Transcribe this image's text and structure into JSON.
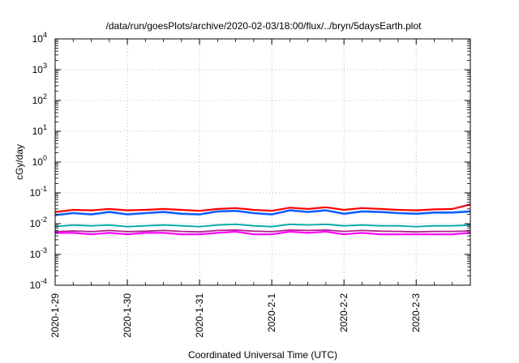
{
  "chart_data": {
    "type": "line",
    "title": "/data/run/goesPlots/archive/2020-02-03/18:00/flux/../bryn/5daysEarth.plot",
    "xlabel": "Coordinated Universal Time (UTC)",
    "ylabel": "cGy/day",
    "y_scale": "log",
    "ylim": [
      0.0001,
      10000
    ],
    "y_ticks": [
      {
        "value": 10000,
        "base": "10",
        "exp": "4"
      },
      {
        "value": 1000,
        "base": "10",
        "exp": "3"
      },
      {
        "value": 100,
        "base": "10",
        "exp": "2"
      },
      {
        "value": 10,
        "base": "10",
        "exp": "1"
      },
      {
        "value": 1,
        "base": "10",
        "exp": "0"
      },
      {
        "value": 0.1,
        "base": "10",
        "exp": "-1"
      },
      {
        "value": 0.01,
        "base": "10",
        "exp": "-2"
      },
      {
        "value": 0.001,
        "base": "10",
        "exp": "-3"
      },
      {
        "value": 0.0001,
        "base": "10",
        "exp": "-4"
      }
    ],
    "xlim": [
      "2020-01-29 00:00",
      "2020-02-03 18:00"
    ],
    "x_ticks": [
      {
        "value": "2020-01-29 00:00",
        "label": "2020-1-29"
      },
      {
        "value": "2020-01-30 00:00",
        "label": "2020-1-30"
      },
      {
        "value": "2020-01-31 00:00",
        "label": "2020-1-31"
      },
      {
        "value": "2020-02-01 00:00",
        "label": "2020-2-1"
      },
      {
        "value": "2020-02-02 00:00",
        "label": "2020-2-2"
      },
      {
        "value": "2020-02-03 00:00",
        "label": "2020-2-3"
      }
    ],
    "grid": true,
    "legend": "none",
    "series": [
      {
        "color": "#ff0000",
        "points": [
          [
            "2020-01-29 00:00",
            0.024
          ],
          [
            "2020-01-29 06:00",
            0.028
          ],
          [
            "2020-01-29 12:00",
            0.027
          ],
          [
            "2020-01-29 18:00",
            0.03
          ],
          [
            "2020-01-30 00:00",
            0.027
          ],
          [
            "2020-01-30 06:00",
            0.028
          ],
          [
            "2020-01-30 12:00",
            0.03
          ],
          [
            "2020-01-30 18:00",
            0.028
          ],
          [
            "2020-01-31 00:00",
            0.026
          ],
          [
            "2020-01-31 06:00",
            0.03
          ],
          [
            "2020-01-31 12:00",
            0.032
          ],
          [
            "2020-01-31 18:00",
            0.028
          ],
          [
            "2020-02-01 00:00",
            0.026
          ],
          [
            "2020-02-01 06:00",
            0.033
          ],
          [
            "2020-02-01 12:00",
            0.03
          ],
          [
            "2020-02-01 18:00",
            0.034
          ],
          [
            "2020-02-02 00:00",
            0.028
          ],
          [
            "2020-02-02 06:00",
            0.032
          ],
          [
            "2020-02-02 12:00",
            0.03
          ],
          [
            "2020-02-02 18:00",
            0.028
          ],
          [
            "2020-02-03 00:00",
            0.027
          ],
          [
            "2020-02-03 06:00",
            0.029
          ],
          [
            "2020-02-03 12:00",
            0.03
          ],
          [
            "2020-02-03 18:00",
            0.042
          ]
        ]
      },
      {
        "color": "#1060ff",
        "points": [
          [
            "2020-01-29 00:00",
            0.019
          ],
          [
            "2020-01-29 06:00",
            0.022
          ],
          [
            "2020-01-29 12:00",
            0.02
          ],
          [
            "2020-01-29 18:00",
            0.024
          ],
          [
            "2020-01-30 00:00",
            0.02
          ],
          [
            "2020-01-30 06:00",
            0.022
          ],
          [
            "2020-01-30 12:00",
            0.024
          ],
          [
            "2020-01-30 18:00",
            0.021
          ],
          [
            "2020-01-31 00:00",
            0.02
          ],
          [
            "2020-01-31 06:00",
            0.025
          ],
          [
            "2020-01-31 12:00",
            0.026
          ],
          [
            "2020-01-31 18:00",
            0.022
          ],
          [
            "2020-02-01 00:00",
            0.02
          ],
          [
            "2020-02-01 06:00",
            0.027
          ],
          [
            "2020-02-01 12:00",
            0.024
          ],
          [
            "2020-02-01 18:00",
            0.027
          ],
          [
            "2020-02-02 00:00",
            0.021
          ],
          [
            "2020-02-02 06:00",
            0.025
          ],
          [
            "2020-02-02 12:00",
            0.024
          ],
          [
            "2020-02-02 18:00",
            0.022
          ],
          [
            "2020-02-03 00:00",
            0.021
          ],
          [
            "2020-02-03 06:00",
            0.023
          ],
          [
            "2020-02-03 12:00",
            0.023
          ],
          [
            "2020-02-03 18:00",
            0.025
          ]
        ]
      },
      {
        "color": "#00a8a8",
        "points": [
          [
            "2020-01-29 00:00",
            0.008
          ],
          [
            "2020-01-29 06:00",
            0.009
          ],
          [
            "2020-01-29 12:00",
            0.0085
          ],
          [
            "2020-01-29 18:00",
            0.009
          ],
          [
            "2020-01-30 00:00",
            0.008
          ],
          [
            "2020-01-30 06:00",
            0.0085
          ],
          [
            "2020-01-30 12:00",
            0.009
          ],
          [
            "2020-01-30 18:00",
            0.0085
          ],
          [
            "2020-01-31 00:00",
            0.008
          ],
          [
            "2020-01-31 06:00",
            0.009
          ],
          [
            "2020-01-31 12:00",
            0.0095
          ],
          [
            "2020-01-31 18:00",
            0.0085
          ],
          [
            "2020-02-01 00:00",
            0.008
          ],
          [
            "2020-02-01 06:00",
            0.0095
          ],
          [
            "2020-02-01 12:00",
            0.009
          ],
          [
            "2020-02-01 18:00",
            0.0095
          ],
          [
            "2020-02-02 00:00",
            0.0085
          ],
          [
            "2020-02-02 06:00",
            0.009
          ],
          [
            "2020-02-02 12:00",
            0.0085
          ],
          [
            "2020-02-02 18:00",
            0.0085
          ],
          [
            "2020-02-03 00:00",
            0.008
          ],
          [
            "2020-02-03 06:00",
            0.0085
          ],
          [
            "2020-02-03 12:00",
            0.0085
          ],
          [
            "2020-02-03 18:00",
            0.009
          ]
        ]
      },
      {
        "color": "#b0208c",
        "points": [
          [
            "2020-01-29 00:00",
            0.0055
          ],
          [
            "2020-01-29 06:00",
            0.0058
          ],
          [
            "2020-01-29 12:00",
            0.0055
          ],
          [
            "2020-01-29 18:00",
            0.006
          ],
          [
            "2020-01-30 00:00",
            0.0055
          ],
          [
            "2020-01-30 06:00",
            0.0057
          ],
          [
            "2020-01-30 12:00",
            0.006
          ],
          [
            "2020-01-30 18:00",
            0.0056
          ],
          [
            "2020-01-31 00:00",
            0.0054
          ],
          [
            "2020-01-31 06:00",
            0.006
          ],
          [
            "2020-01-31 12:00",
            0.0062
          ],
          [
            "2020-01-31 18:00",
            0.0057
          ],
          [
            "2020-02-01 00:00",
            0.0055
          ],
          [
            "2020-02-01 06:00",
            0.0062
          ],
          [
            "2020-02-01 12:00",
            0.006
          ],
          [
            "2020-02-01 18:00",
            0.0062
          ],
          [
            "2020-02-02 00:00",
            0.0056
          ],
          [
            "2020-02-02 06:00",
            0.006
          ],
          [
            "2020-02-02 12:00",
            0.0057
          ],
          [
            "2020-02-02 18:00",
            0.0056
          ],
          [
            "2020-02-03 00:00",
            0.0054
          ],
          [
            "2020-02-03 06:00",
            0.0056
          ],
          [
            "2020-02-03 12:00",
            0.0056
          ],
          [
            "2020-02-03 18:00",
            0.0058
          ]
        ]
      },
      {
        "color": "#ff00ff",
        "points": [
          [
            "2020-01-29 00:00",
            0.005
          ],
          [
            "2020-01-29 06:00",
            0.005
          ],
          [
            "2020-01-29 12:00",
            0.0045
          ],
          [
            "2020-01-29 18:00",
            0.005
          ],
          [
            "2020-01-30 00:00",
            0.0045
          ],
          [
            "2020-01-30 06:00",
            0.005
          ],
          [
            "2020-01-30 12:00",
            0.005
          ],
          [
            "2020-01-30 18:00",
            0.0045
          ],
          [
            "2020-01-31 00:00",
            0.0045
          ],
          [
            "2020-01-31 06:00",
            0.005
          ],
          [
            "2020-01-31 12:00",
            0.0055
          ],
          [
            "2020-01-31 18:00",
            0.0045
          ],
          [
            "2020-02-01 00:00",
            0.0045
          ],
          [
            "2020-02-01 06:00",
            0.0055
          ],
          [
            "2020-02-01 12:00",
            0.005
          ],
          [
            "2020-02-01 18:00",
            0.0055
          ],
          [
            "2020-02-02 00:00",
            0.0045
          ],
          [
            "2020-02-02 06:00",
            0.005
          ],
          [
            "2020-02-02 12:00",
            0.0045
          ],
          [
            "2020-02-02 18:00",
            0.0045
          ],
          [
            "2020-02-03 00:00",
            0.0045
          ],
          [
            "2020-02-03 06:00",
            0.0045
          ],
          [
            "2020-02-03 12:00",
            0.0045
          ],
          [
            "2020-02-03 18:00",
            0.005
          ]
        ]
      }
    ]
  }
}
